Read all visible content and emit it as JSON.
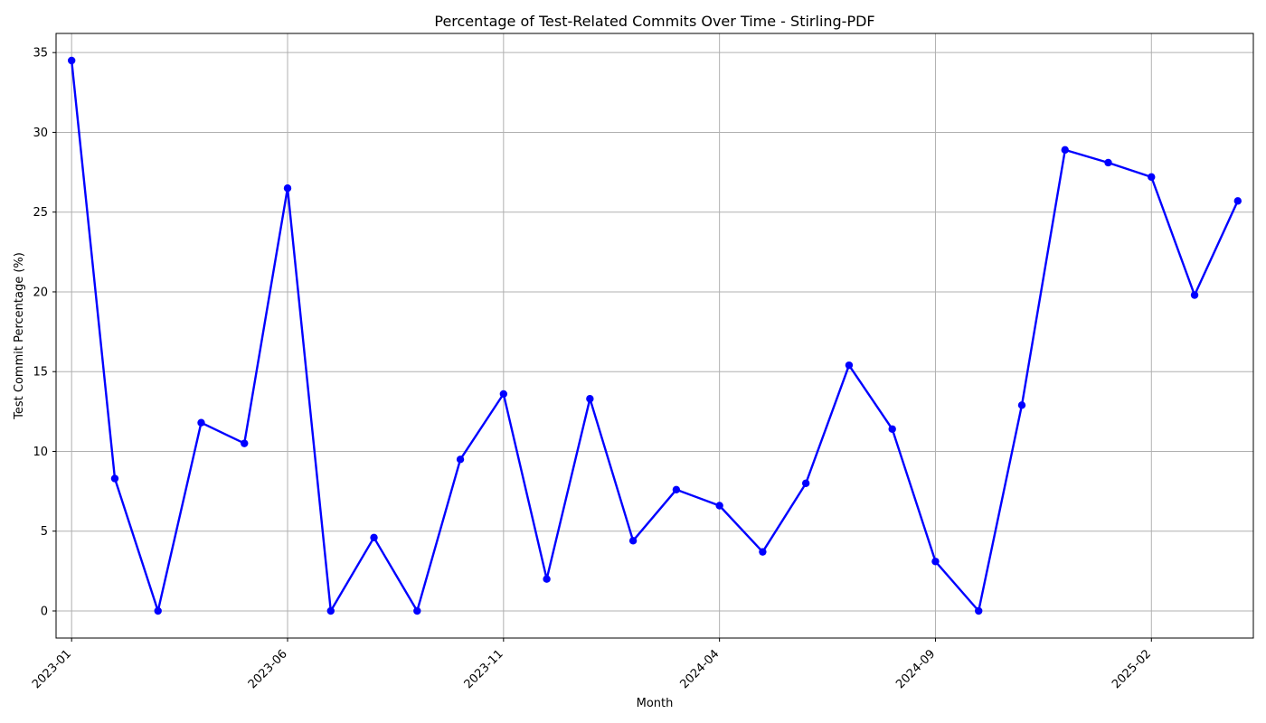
{
  "chart_data": {
    "type": "line",
    "title": "Percentage of Test-Related Commits Over Time - Stirling-PDF",
    "xlabel": "Month",
    "ylabel": "Test Commit Percentage (%)",
    "x_ticks": [
      "2023-01",
      "2023-06",
      "2023-11",
      "2024-04",
      "2024-09",
      "2025-02"
    ],
    "y_ticks": [
      0,
      5,
      10,
      15,
      20,
      25,
      30,
      35
    ],
    "ylim": [
      -1.7,
      36.2
    ],
    "xlim": [
      "2022-12",
      "2025-04"
    ],
    "grid": true,
    "colors": {
      "line": "#0000ff",
      "marker": "#0000ff",
      "grid": "#b0b0b0"
    },
    "series": [
      {
        "x": [
          "2023-01",
          "2023-02",
          "2023-03",
          "2023-04",
          "2023-05",
          "2023-06",
          "2023-07",
          "2023-08",
          "2023-09",
          "2023-10",
          "2023-11",
          "2023-12",
          "2024-01",
          "2024-02",
          "2024-03",
          "2024-04",
          "2024-05",
          "2024-06",
          "2024-07",
          "2024-08",
          "2024-09",
          "2024-10",
          "2024-11",
          "2024-12",
          "2025-01",
          "2025-02",
          "2025-03",
          "2025-04"
        ],
        "values": [
          34.5,
          8.3,
          0.0,
          11.8,
          10.5,
          26.5,
          0.0,
          4.6,
          0.0,
          9.5,
          13.6,
          2.0,
          13.3,
          4.4,
          7.6,
          6.6,
          3.7,
          8.0,
          15.4,
          11.4,
          3.1,
          0.0,
          12.9,
          28.9,
          28.1,
          27.2,
          19.8,
          25.7
        ]
      }
    ]
  }
}
